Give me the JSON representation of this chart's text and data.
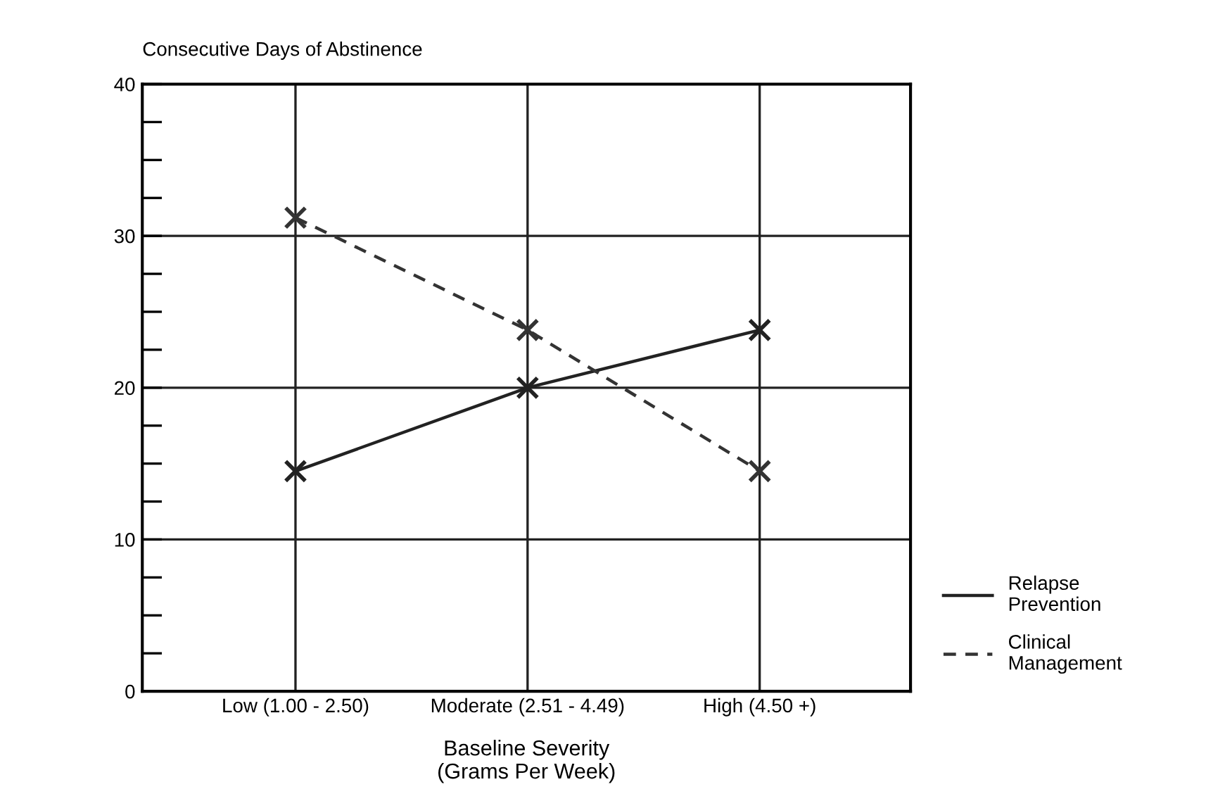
{
  "chart_data": {
    "type": "line",
    "ylabel": "Consecutive Days of Abstinence",
    "xlabel": "Baseline Severity\n(Grams Per Week)",
    "categories": [
      "Low (1.00 - 2.50)",
      "Moderate (2.51 - 4.49)",
      "High (4.50 +)"
    ],
    "series": [
      {
        "name": "Relapse\nPrevention",
        "color": "#222222",
        "values": [
          14.5,
          20,
          23.8
        ],
        "line_style": "solid"
      },
      {
        "name": "Clinical\nManagement",
        "color": "#333333",
        "values": [
          31.2,
          23.8,
          14.5
        ],
        "line_style": "dashed"
      }
    ],
    "ylim": [
      0,
      40
    ],
    "yticks": [
      0,
      {
        "value": 2.5,
        "label": null
      },
      {
        "value": 5,
        "label": null
      },
      {
        "value": 7.5,
        "label": null
      },
      10,
      {
        "value": 12.5,
        "label": null
      },
      {
        "value": 15,
        "label": null
      },
      {
        "value": 17.5,
        "label": null
      },
      20,
      {
        "value": 22.5,
        "label": null
      },
      {
        "value": 25,
        "label": null
      },
      {
        "value": 27.5,
        "label": null
      },
      30,
      {
        "value": 32.5,
        "label": null
      },
      {
        "value": 35,
        "label": null
      },
      {
        "value": 37.5,
        "label": null
      },
      40
    ],
    "grid": true,
    "marker": "cross",
    "legend": "bottom right"
  }
}
